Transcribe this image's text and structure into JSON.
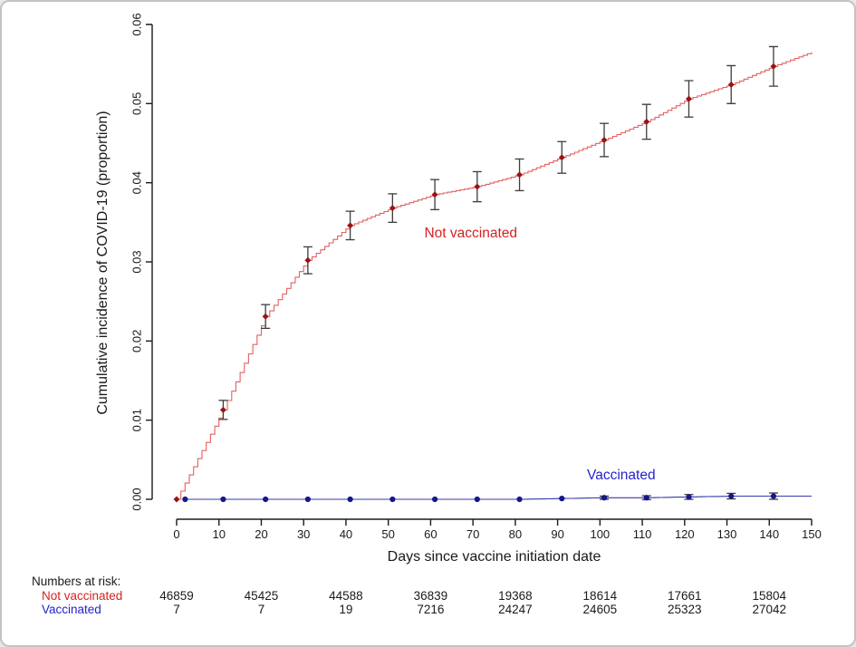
{
  "frame": {
    "background": "#ffffff",
    "border_color": "#c3c3c3"
  },
  "chart_data": {
    "type": "line",
    "subtype": "cumulative-incidence-step-curves-with-error-bars",
    "title": "",
    "xlabel": "Days since vaccine initiation date",
    "ylabel": "Cumulative incidence of COVID-19 (proportion)",
    "xlim": [
      0,
      150
    ],
    "ylim": [
      0,
      0.06
    ],
    "x_ticks": [
      0,
      10,
      20,
      30,
      40,
      50,
      60,
      70,
      80,
      90,
      100,
      110,
      120,
      130,
      140,
      150
    ],
    "y_ticks": [
      0,
      0.01,
      0.02,
      0.03,
      0.04,
      0.05,
      0.06
    ],
    "y_tick_labels": [
      "0.00",
      "0.01",
      "0.02",
      "0.03",
      "0.04",
      "0.05",
      "0.06"
    ],
    "grid": "off",
    "legend_position": "inline-annotations",
    "axis_color": "#1a1a1a",
    "error_bar_color": "#3d3d3d",
    "series": [
      {
        "name": "Not vaccinated",
        "line_color": "#e26161",
        "marker_color": "#9b1313",
        "marker_shape": "diamond",
        "label_color": "#d42222",
        "label_day": 70.5,
        "label_value": 0.0336,
        "start_day": 0,
        "breakpoints": [
          [
            0,
            0
          ],
          [
            11,
            0.0113
          ],
          [
            21,
            0.0231
          ],
          [
            31,
            0.0302
          ],
          [
            41,
            0.0346
          ],
          [
            51,
            0.0368
          ],
          [
            61,
            0.0385
          ],
          [
            71,
            0.0395
          ],
          [
            81,
            0.041
          ],
          [
            91,
            0.0432
          ],
          [
            101,
            0.0454
          ],
          [
            111,
            0.0477
          ],
          [
            121,
            0.0506
          ],
          [
            131,
            0.0524
          ],
          [
            141,
            0.0547
          ],
          [
            150,
            0.0565
          ]
        ],
        "marker_days": [
          0,
          11,
          21,
          31,
          41,
          51,
          61,
          71,
          81,
          91,
          101,
          111,
          121,
          131,
          141
        ],
        "error_bars": [
          [
            11,
            0.0012
          ],
          [
            21,
            0.0015
          ],
          [
            31,
            0.0017
          ],
          [
            41,
            0.0018
          ],
          [
            51,
            0.0018
          ],
          [
            61,
            0.0019
          ],
          [
            71,
            0.0019
          ],
          [
            81,
            0.002
          ],
          [
            91,
            0.002
          ],
          [
            101,
            0.0021
          ],
          [
            111,
            0.0022
          ],
          [
            121,
            0.0023
          ],
          [
            131,
            0.0024
          ],
          [
            141,
            0.0025
          ]
        ]
      },
      {
        "name": "Vaccinated",
        "line_color": "#3939ad",
        "marker_color": "#16168c",
        "marker_shape": "circle",
        "label_color": "#2323cc",
        "label_day": 105.5,
        "label_value": 0.003,
        "start_day": 2,
        "breakpoints": [
          [
            2,
            0
          ],
          [
            81,
            0
          ],
          [
            91,
            0.0001
          ],
          [
            101,
            0.0002
          ],
          [
            111,
            0.0002
          ],
          [
            121,
            0.0003
          ],
          [
            131,
            0.0004
          ],
          [
            141,
            0.0004
          ],
          [
            150,
            0.0004
          ]
        ],
        "marker_days": [
          2,
          11,
          21,
          31,
          41,
          51,
          61,
          71,
          81,
          91,
          101,
          111,
          121,
          131,
          141
        ],
        "error_bars": [
          [
            101,
            0.0002
          ],
          [
            111,
            0.00025
          ],
          [
            121,
            0.0003
          ],
          [
            131,
            0.00035
          ],
          [
            141,
            0.0004
          ]
        ]
      }
    ],
    "at_risk": {
      "header": "Numbers at risk:",
      "days": [
        0,
        20,
        40,
        60,
        80,
        100,
        120,
        140
      ],
      "rows": [
        {
          "label": "Not vaccinated",
          "color": "#d42222",
          "counts": [
            "46859",
            "45425",
            "44588",
            "36839",
            "19368",
            "18614",
            "17661",
            "15804"
          ]
        },
        {
          "label": "Vaccinated",
          "color": "#2323cc",
          "counts": [
            "7",
            "7",
            "19",
            "7216",
            "24247",
            "24605",
            "25323",
            "27042"
          ]
        }
      ]
    }
  }
}
